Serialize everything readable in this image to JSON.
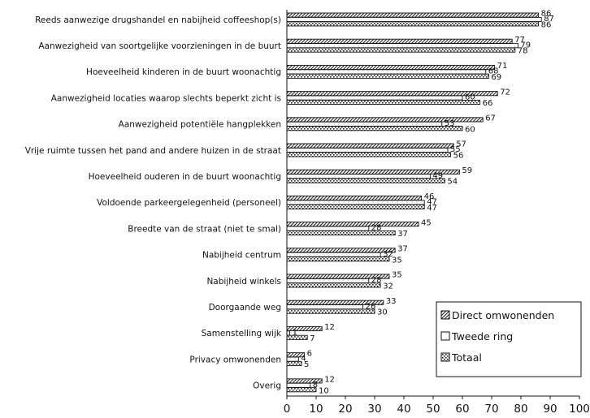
{
  "chart_data": {
    "type": "bar",
    "orientation": "horizontal",
    "categories": [
      "Reeds aanwezige drugshandel en nabijheid coffeeshop(s)",
      "Aanwezigheid van soortgelijke voorzieningen in de buurt",
      "Hoeveelheid kinderen in de buurt woonachtig",
      "Aanwezigheid locaties waarop slechts beperkt zicht is",
      "Aanwezigheid potentiële hangplekken",
      "Vrije ruimte tussen het pand and andere huizen in de straat",
      "Hoeveelheid ouderen in de buurt woonachtig",
      "Voldoende parkeergelegenheid (personeel)",
      "Breedte van de straat (niet te smal)",
      "Nabijheid centrum",
      "Nabijheid winkels",
      "Doorgaande weg",
      "Samenstelling wijk",
      "Privacy omwonenden",
      "Overig"
    ],
    "series": [
      {
        "name": "Direct omwonenden",
        "pattern": "hatch",
        "values": [
          86,
          77,
          71,
          72,
          67,
          57,
          59,
          46,
          45,
          37,
          35,
          33,
          12,
          6,
          12
        ]
      },
      {
        "name": "Tweede ring",
        "pattern": "light",
        "values": [
          87,
          79,
          68,
          60,
          53,
          55,
          49,
          47,
          28,
          32,
          28,
          26,
          1,
          4,
          8
        ]
      },
      {
        "name": "Totaal",
        "pattern": "dotted",
        "values": [
          86,
          78,
          69,
          66,
          60,
          56,
          54,
          47,
          37,
          35,
          32,
          30,
          7,
          5,
          10
        ]
      }
    ],
    "xlim": [
      0,
      100
    ],
    "xticks": [
      0,
      10,
      20,
      30,
      40,
      50,
      60,
      70,
      80,
      90,
      100
    ],
    "legend_position": "bottom-right",
    "grid": false,
    "colors": {
      "bar_fill": "#ffffff",
      "bar_stroke": "#111111",
      "pattern": "#222222"
    }
  }
}
